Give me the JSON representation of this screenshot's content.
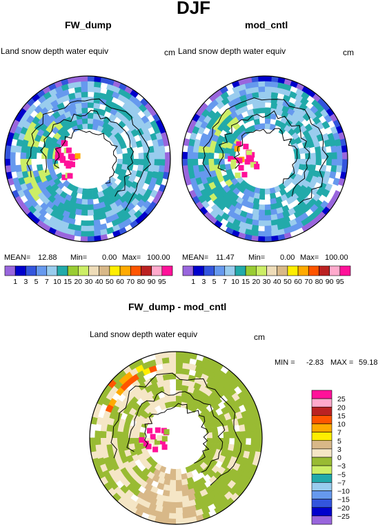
{
  "figure": {
    "title": "DJF"
  },
  "panels": [
    {
      "title": "FW_dump",
      "variable": "Land snow depth water equiv",
      "units": "cm",
      "mean_label": "MEAN=",
      "mean_value": "12.88",
      "min_label": "Min=",
      "min_value": "0.00",
      "max_label": "Max=",
      "max_value": "100.00"
    },
    {
      "title": "mod_cntl",
      "variable": "Land snow depth water equiv",
      "units": "cm",
      "mean_label": "MEAN=",
      "mean_value": "11.47",
      "min_label": "Min=",
      "min_value": "0.00",
      "max_label": "Max=",
      "max_value": "100.00"
    },
    {
      "title": "FW_dump - mod_cntl",
      "variable": "Land snow depth water equiv",
      "units": "cm",
      "min_label": "MIN =",
      "min_value": "-2.83",
      "max_label": "MAX =",
      "max_value": "59.18"
    }
  ],
  "colorbar_horizontal": {
    "labels": [
      "1",
      "3",
      "5",
      "7",
      "10",
      "15",
      "20",
      "30",
      "40",
      "50",
      "60",
      "70",
      "80",
      "90",
      "95"
    ],
    "colors": [
      "#9966dd",
      "#0000cc",
      "#3355dd",
      "#6699ee",
      "#99ccee",
      "#22aaaa",
      "#99cc33",
      "#ccee66",
      "#eedcb8",
      "#d8b888",
      "#ffee00",
      "#ffaa00",
      "#ff5500",
      "#bb2222",
      "#ffaacc",
      "#ff1199"
    ]
  },
  "colorbar_vertical": {
    "labels": [
      "25",
      "20",
      "15",
      "10",
      "7",
      "5",
      "3",
      "0",
      "−3",
      "−5",
      "−7",
      "−10",
      "−15",
      "−20",
      "−25"
    ],
    "colors": [
      "#ff1199",
      "#ffaacc",
      "#bb2222",
      "#ff5500",
      "#ffaa00",
      "#ffee00",
      "#d8b888",
      "#f5e6c6",
      "#99bb33",
      "#ccee66",
      "#22aaaa",
      "#99ccee",
      "#6699ee",
      "#3355dd",
      "#0000cc",
      "#9966dd"
    ]
  },
  "chart_data": [
    {
      "type": "heatmap",
      "title": "FW_dump",
      "projection": "polar stereographic",
      "variable": "Land snow depth water equiv",
      "units": "cm",
      "stats": {
        "mean": 12.88,
        "min": 0.0,
        "max": 100.0
      }
    },
    {
      "type": "heatmap",
      "title": "mod_cntl",
      "projection": "polar stereographic",
      "variable": "Land snow depth water equiv",
      "units": "cm",
      "stats": {
        "mean": 11.47,
        "min": 0.0,
        "max": 100.0
      }
    },
    {
      "type": "heatmap",
      "title": "FW_dump - mod_cntl",
      "projection": "polar stereographic",
      "variable": "Land snow depth water equiv",
      "units": "cm",
      "stats": {
        "min": -2.83,
        "max": 59.18
      }
    }
  ]
}
